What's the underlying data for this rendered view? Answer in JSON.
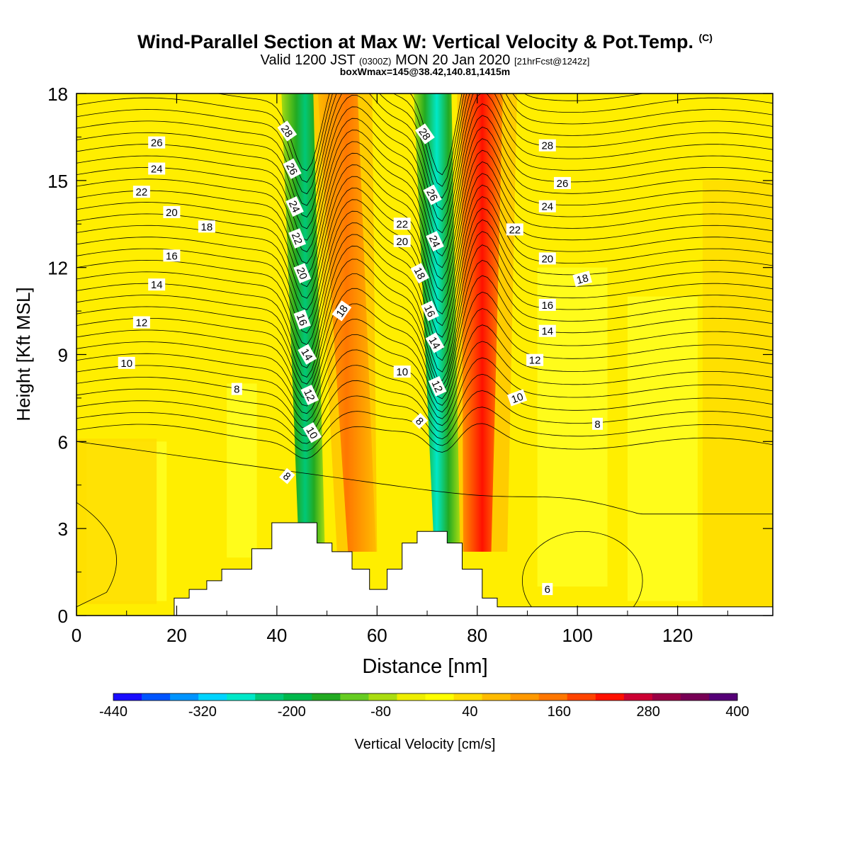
{
  "title": {
    "main": "Wind-Parallel Section at Max W: Vertical Velocity & Pot.Temp.",
    "copyright": "(C)",
    "valid_prefix": "Valid 1200 JST",
    "valid_utc": "(0300Z)",
    "valid_date": "MON 20 Jan 2020",
    "forecast": "[21hrFcst@1242z]",
    "box_info": "boxWmax=145@38.42,140.81,1415m"
  },
  "chart_data": {
    "type": "heatmap",
    "xlabel": "Distance [nm]",
    "ylabel": "Height [Kft MSL]",
    "xlim": [
      0,
      139
    ],
    "ylim": [
      0,
      18
    ],
    "x_ticks": [
      0,
      20,
      40,
      60,
      80,
      100,
      120
    ],
    "y_ticks": [
      0,
      3,
      6,
      9,
      12,
      15,
      18
    ],
    "colorbar": {
      "label": "Vertical Velocity [cm/s]",
      "range": [
        -440,
        400
      ],
      "tick_labels": [
        "-440",
        "-320",
        "-200",
        "-80",
        "40",
        "160",
        "280",
        "400"
      ],
      "colors": [
        "#1a0dff",
        "#0055ff",
        "#0094ff",
        "#00d4ff",
        "#00e8c8",
        "#00c878",
        "#00b84c",
        "#22aa22",
        "#66cc22",
        "#aadd11",
        "#eeee00",
        "#ffff00",
        "#ffdd00",
        "#ffbb00",
        "#ff9900",
        "#ff7700",
        "#ff4400",
        "#ff1100",
        "#cc0033",
        "#990044",
        "#770055",
        "#550077"
      ]
    },
    "vertical_velocity_bands": [
      {
        "label": "downdraft 1",
        "x_center_top": 44,
        "x_center_bottom": 47,
        "min_cm_s": -200
      },
      {
        "label": "updraft 1",
        "x_center_top": 52,
        "x_center_bottom": 57,
        "max_cm_s": 220
      },
      {
        "label": "downdraft 2",
        "x_center_top": 71,
        "x_center_bottom": 74,
        "min_cm_s": -320
      },
      {
        "label": "updraft 2",
        "x_center_top": 81,
        "x_center_bottom": 80,
        "max_cm_s": 300
      }
    ],
    "terrain_kft": [
      [
        0,
        0
      ],
      [
        19.5,
        0
      ],
      [
        19.5,
        0.6
      ],
      [
        22.5,
        0.6
      ],
      [
        22.5,
        0.9
      ],
      [
        26,
        0.9
      ],
      [
        26,
        1.2
      ],
      [
        29,
        1.2
      ],
      [
        29,
        1.6
      ],
      [
        35,
        1.6
      ],
      [
        35,
        2.3
      ],
      [
        39,
        2.3
      ],
      [
        39,
        3.2
      ],
      [
        48,
        3.2
      ],
      [
        48,
        2.5
      ],
      [
        51,
        2.5
      ],
      [
        51,
        2.2
      ],
      [
        55,
        2.2
      ],
      [
        55,
        1.6
      ],
      [
        58.5,
        1.6
      ],
      [
        58.5,
        0.9
      ],
      [
        62,
        0.9
      ],
      [
        62,
        1.6
      ],
      [
        65,
        1.6
      ],
      [
        65,
        2.5
      ],
      [
        68,
        2.5
      ],
      [
        68,
        2.9
      ],
      [
        74,
        2.9
      ],
      [
        74,
        2.5
      ],
      [
        77,
        2.5
      ],
      [
        77,
        1.6
      ],
      [
        81,
        1.6
      ],
      [
        81,
        0.6
      ],
      [
        84,
        0.6
      ],
      [
        84,
        0.3
      ],
      [
        139,
        0.3
      ],
      [
        139,
        0
      ]
    ],
    "potential_temperature_labels": [
      {
        "text": "26",
        "x": 16,
        "y": 16.3
      },
      {
        "text": "24",
        "x": 16,
        "y": 15.4
      },
      {
        "text": "22",
        "x": 13,
        "y": 14.6
      },
      {
        "text": "20",
        "x": 19,
        "y": 13.9
      },
      {
        "text": "18",
        "x": 26,
        "y": 13.4
      },
      {
        "text": "16",
        "x": 19,
        "y": 12.4
      },
      {
        "text": "14",
        "x": 16,
        "y": 11.4
      },
      {
        "text": "12",
        "x": 13,
        "y": 10.1
      },
      {
        "text": "10",
        "x": 10,
        "y": 8.7
      },
      {
        "text": "8",
        "x": 32,
        "y": 7.8
      },
      {
        "text": "28",
        "x": 42,
        "y": 16.7,
        "angle": 55
      },
      {
        "text": "26",
        "x": 43,
        "y": 15.4,
        "angle": 62
      },
      {
        "text": "24",
        "x": 43.5,
        "y": 14.1,
        "angle": 65
      },
      {
        "text": "22",
        "x": 44,
        "y": 13.0,
        "angle": 68
      },
      {
        "text": "20",
        "x": 45,
        "y": 11.8,
        "angle": 68
      },
      {
        "text": "16",
        "x": 45,
        "y": 10.2,
        "angle": 70
      },
      {
        "text": "14",
        "x": 46,
        "y": 9.0,
        "angle": 60
      },
      {
        "text": "12",
        "x": 46.5,
        "y": 7.6,
        "angle": 65
      },
      {
        "text": "10",
        "x": 47,
        "y": 6.3,
        "angle": 60
      },
      {
        "text": "8",
        "x": 42,
        "y": 4.8,
        "angle": 40
      },
      {
        "text": "18",
        "x": 53,
        "y": 10.5,
        "angle": -55
      },
      {
        "text": "22",
        "x": 65,
        "y": 13.5
      },
      {
        "text": "20",
        "x": 65,
        "y": 12.9
      },
      {
        "text": "10",
        "x": 65,
        "y": 8.4
      },
      {
        "text": "8",
        "x": 68.5,
        "y": 6.7,
        "angle": 45
      },
      {
        "text": "28",
        "x": 69.5,
        "y": 16.6,
        "angle": 55
      },
      {
        "text": "26",
        "x": 71,
        "y": 14.5,
        "angle": 62
      },
      {
        "text": "24",
        "x": 71.5,
        "y": 12.9,
        "angle": 65
      },
      {
        "text": "18",
        "x": 68.5,
        "y": 11.8,
        "angle": 62
      },
      {
        "text": "16",
        "x": 70.5,
        "y": 10.5,
        "angle": 65
      },
      {
        "text": "14",
        "x": 71.5,
        "y": 9.4,
        "angle": 60
      },
      {
        "text": "12",
        "x": 72,
        "y": 7.9,
        "angle": 65
      },
      {
        "text": "28",
        "x": 94,
        "y": 16.2
      },
      {
        "text": "26",
        "x": 97,
        "y": 14.9
      },
      {
        "text": "24",
        "x": 94,
        "y": 14.1
      },
      {
        "text": "22",
        "x": 87.5,
        "y": 13.3
      },
      {
        "text": "20",
        "x": 94,
        "y": 12.3
      },
      {
        "text": "18",
        "x": 101,
        "y": 11.6,
        "angle": -15
      },
      {
        "text": "16",
        "x": 94,
        "y": 10.7
      },
      {
        "text": "14",
        "x": 94,
        "y": 9.8
      },
      {
        "text": "12",
        "x": 91.5,
        "y": 8.8
      },
      {
        "text": "10",
        "x": 88,
        "y": 7.5,
        "angle": -20
      },
      {
        "text": "8",
        "x": 104,
        "y": 6.6
      },
      {
        "text": "6",
        "x": 94,
        "y": 0.9
      }
    ],
    "grid": false
  }
}
